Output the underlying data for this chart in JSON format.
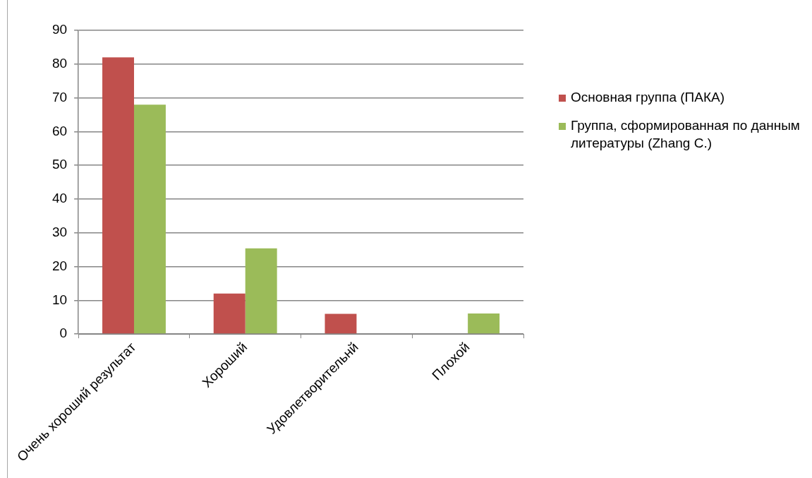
{
  "chart_data": {
    "type": "bar",
    "categories": [
      "Очень хороший результат",
      "Хороший",
      "Удовлетворительнй",
      "Плохой"
    ],
    "series": [
      {
        "name": "Основная группа (ПАКА)",
        "color": "#c0504d",
        "values": [
          82,
          12,
          6,
          0
        ]
      },
      {
        "name": "Группа, сформированная по данным литературы (Zhang C.)",
        "color": "#9bbb59",
        "values": [
          68,
          25.4,
          0,
          6.1
        ]
      }
    ],
    "ylim": [
      0,
      90
    ],
    "yticks": [
      0,
      10,
      20,
      30,
      40,
      50,
      60,
      70,
      80,
      90
    ],
    "grid": "y",
    "legend": "right"
  }
}
